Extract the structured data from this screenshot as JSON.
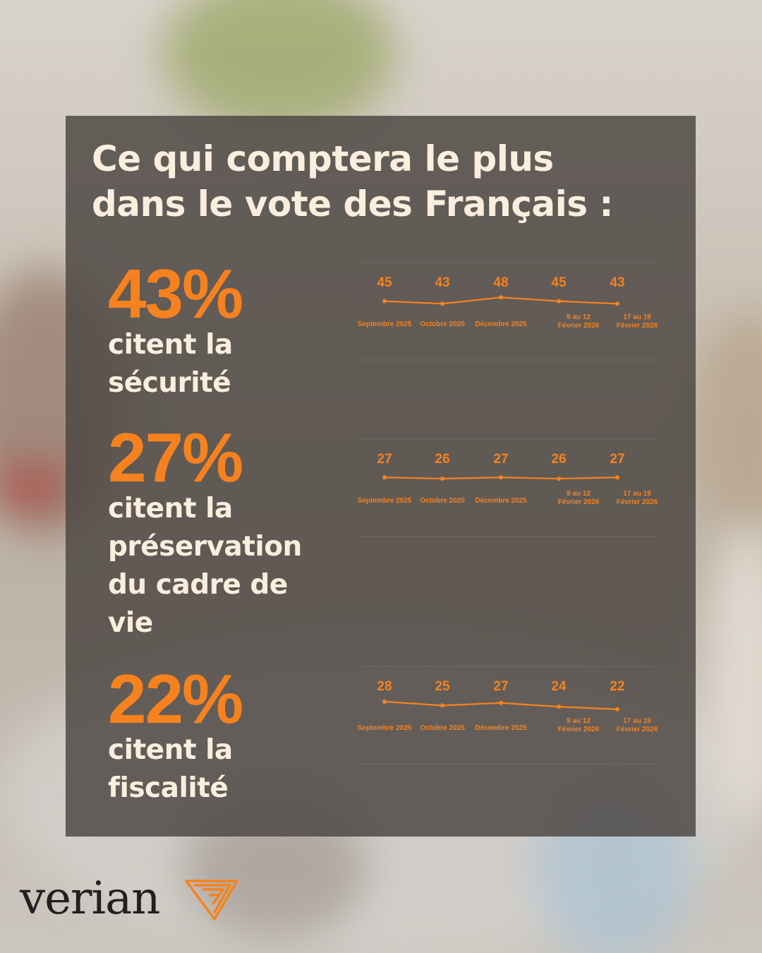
{
  "title_line1": "Ce qui comptera le plus",
  "title_line2": "dans le vote des Français :",
  "stats": [
    {
      "pct": "43%",
      "desc": [
        "citent la",
        "sécurité"
      ]
    },
    {
      "pct": "27%",
      "desc": [
        "citent la",
        "préservation",
        "du cadre de",
        "vie"
      ]
    },
    {
      "pct": "22%",
      "desc": [
        "citent la",
        "fiscalité"
      ]
    }
  ],
  "chart_data": [
    {
      "type": "line",
      "x": [
        "Septembre 2025",
        "Octobre 2025",
        "Décembre 2025",
        "9 au 12 Février 2026",
        "17 au 19 Février 2026"
      ],
      "series": [
        {
          "values": [
            45,
            43,
            48,
            45,
            43
          ]
        }
      ]
    },
    {
      "type": "line",
      "x": [
        "Septembre 2025",
        "Octobre 2025",
        "Décembre 2025",
        "9 au 12 Février 2026",
        "17 au 19 Février 2026"
      ],
      "series": [
        {
          "values": [
            27,
            26,
            27,
            26,
            27
          ]
        }
      ]
    },
    {
      "type": "line",
      "x": [
        "Septembre 2025",
        "Octobre 2025",
        "Décembre 2025",
        "9 au 12 Février 2026",
        "17 au 19 Février 2026"
      ],
      "series": [
        {
          "values": [
            28,
            25,
            27,
            24,
            22
          ]
        }
      ]
    }
  ],
  "colors": {
    "accent": "#f5821f",
    "panel": "#4e4844",
    "text": "#fbeede"
  },
  "brand": {
    "name": "verian",
    "icon": "verian-logo-icon"
  }
}
